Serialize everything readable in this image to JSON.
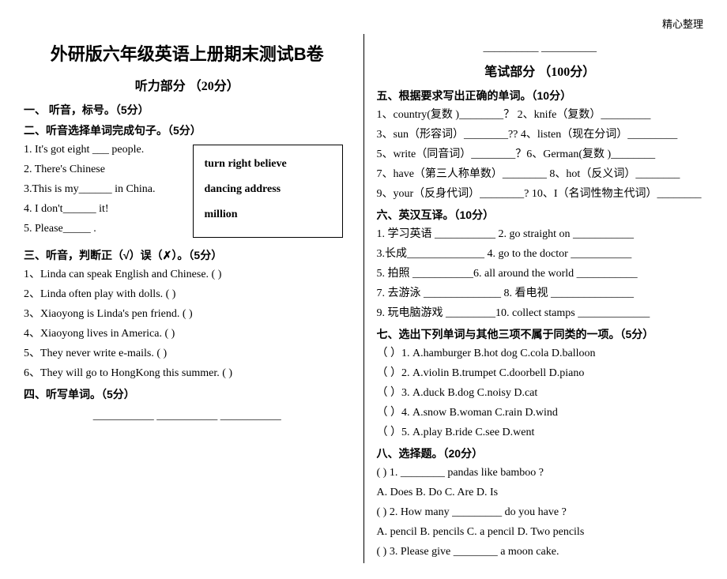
{
  "header_note": "精心整理",
  "title": "外研版六年级英语上册期末测试B卷",
  "listening_title": "听力部分 （20分）",
  "writing_title": "笔试部分 （100分）",
  "sec1": "一、   听音，标号。（5分）",
  "sec2": "二、听音选择单词完成句子。（5分）",
  "sec2_items": [
    "1. It's got eight ___ people.",
    "2. There's Chinese",
    "3.This is my______ in China.",
    "4. I don't______ it!",
    "5. Please_____ ."
  ],
  "wordbox_rows": [
    "turn right    believe",
    "dancing      address",
    "million"
  ],
  "sec3": "三、听音，判断正（√）误（✗）。（5分）",
  "sec3_items": [
    "1、Linda can speak English and Chinese. (   )",
    "2、Linda often play with dolls. (   )",
    "3、Xiaoyong is Linda's pen friend. (   )",
    "4、Xiaoyong lives in America. (   )",
    "5、They never write e-mails. (   )",
    "6、They will go to HongKong this summer. (   )"
  ],
  "sec4": "四、听写单词。（5分）",
  "sec4_blanks": "___________  ___________  ___________",
  "top_right_blanks": "__________  __________",
  "sec5": "五、根据要求写出正确的单词。（10分）",
  "sec5_items": [
    "1、country(复数 )________？ 2、knife（复数）_________",
    "3、sun（形容词）________?? 4、listen（现在分词）_________",
    "5、write（同音词）________？6、German(复数 )________",
    "7、have（第三人称单数）________  8、hot（反义词）________",
    "9、your（反身代词）________? 10、I（名词性物主代词）________"
  ],
  "sec6": "六、英汉互译。（10分）",
  "sec6_items": [
    "1. 学习英语 ___________ 2. go straight on  ___________",
    "3.长成______________ 4. go to the doctor ___________",
    "5. 拍照 ___________6. all around the world ___________",
    "7. 去游泳  ______________ 8. 看电视 _______________",
    "9. 玩电脑游戏 _________10. collect  stamps _____________"
  ],
  "sec7": "七、选出下列单词与其他三项不属于同类的一项。（5分）",
  "sec7_items": [
    "（    ）1. A.hamburger   B.hot dog    C.cola    D.balloon",
    "（    ）2. A.violin      B.trumpet    C.doorbell  D.piano",
    "（    ）3. A.duck       B.dog       C.noisy    D.cat",
    "（    ）4. A.snow      B.woman     C.rain     D.wind",
    "（    ）5. A.play       B.ride       C.see      D.went"
  ],
  "sec8": "八、选择题。（20分）",
  "sec8_items": [
    "(     ) 1.  ________ pandas  like  bamboo ?",
    "              A. Does    B. Do    C. Are    D. Is",
    "(     ) 2. How  many  _________  do  you  have ?",
    "              A. pencil    B. pencils   C.  a  pencil    D.  Two  pencils",
    "(     ) 3. Please  give  ________  a  moon  cake."
  ]
}
